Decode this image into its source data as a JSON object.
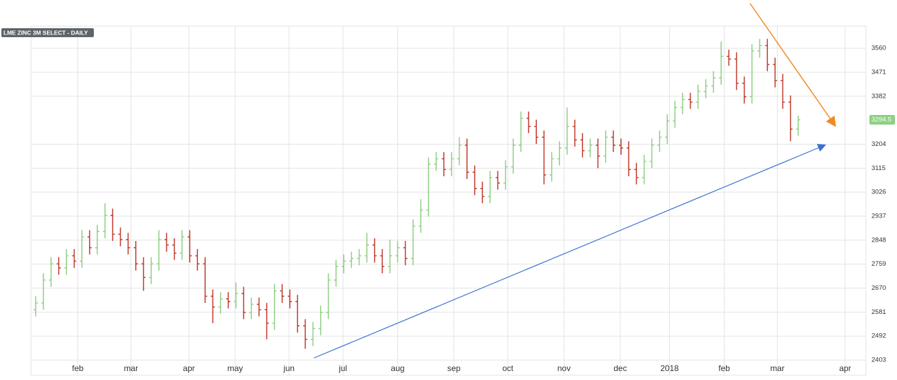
{
  "chart_data": {
    "type": "ohlc",
    "title": "LME ZINC 3M SELECT - DAILY",
    "up_color": "#8fcf84",
    "down_color": "#c0392b",
    "grid": true,
    "xlim": [
      -0.6,
      107.8
    ],
    "xticks": [
      {
        "value": 5.47,
        "label": "feb"
      },
      {
        "value": 12.37,
        "label": "mar"
      },
      {
        "value": 19.9,
        "label": "apr"
      },
      {
        "value": 25.9,
        "label": "may"
      },
      {
        "value": 32.9,
        "label": "jun"
      },
      {
        "value": 39.9,
        "label": "jul"
      },
      {
        "value": 47.0,
        "label": "aug"
      },
      {
        "value": 54.3,
        "label": "sep"
      },
      {
        "value": 61.3,
        "label": "oct"
      },
      {
        "value": 68.6,
        "label": "nov"
      },
      {
        "value": 75.9,
        "label": "dec"
      },
      {
        "value": 82.3,
        "label": "2018"
      },
      {
        "value": 89.4,
        "label": "feb"
      },
      {
        "value": 96.3,
        "label": "mar"
      },
      {
        "value": 105.1,
        "label": "apr"
      }
    ],
    "ylim": [
      2347,
      3642
    ],
    "yticks": [
      2403,
      2492,
      2581,
      2670,
      2759,
      2848,
      2937,
      3026,
      3115,
      3204,
      3382,
      3471,
      3560
    ],
    "open": [
      2590,
      2615,
      2700,
      2760,
      2745,
      2790,
      2770,
      2860,
      2820,
      2880,
      2940,
      2870,
      2850,
      2820,
      2760,
      2710,
      2760,
      2850,
      2830,
      2800,
      2860,
      2790,
      2760,
      2640,
      2600,
      2630,
      2620,
      2650,
      2580,
      2610,
      2590,
      2540,
      2660,
      2640,
      2620,
      2530,
      2480,
      2520,
      2580,
      2700,
      2750,
      2770,
      2780,
      2790,
      2830,
      2790,
      2750,
      2790,
      2820,
      2780,
      2900,
      2960,
      3130,
      3150,
      3110,
      3150,
      3200,
      3100,
      3040,
      3010,
      3080,
      3060,
      3120,
      3200,
      3300,
      3270,
      3230,
      3090,
      3150,
      3190,
      3270,
      3220,
      3180,
      3200,
      3160,
      3230,
      3200,
      3190,
      3110,
      3080,
      3140,
      3200,
      3230,
      3290,
      3340,
      3370,
      3360,
      3400,
      3420,
      3450,
      3530,
      3520,
      3430,
      3380,
      3550,
      3570,
      3500,
      3440,
      3360,
      3260
    ],
    "high": [
      2640,
      2725,
      2785,
      2785,
      2815,
      2815,
      2885,
      2885,
      2905,
      2985,
      2965,
      2895,
      2875,
      2845,
      2785,
      2785,
      2885,
      2875,
      2855,
      2885,
      2885,
      2815,
      2785,
      2665,
      2655,
      2655,
      2690,
      2675,
      2635,
      2635,
      2615,
      2685,
      2685,
      2665,
      2645,
      2555,
      2545,
      2605,
      2725,
      2775,
      2795,
      2805,
      2815,
      2875,
      2855,
      2815,
      2850,
      2845,
      2845,
      2925,
      3000,
      3155,
      3175,
      3175,
      3175,
      3230,
      3225,
      3125,
      3065,
      3105,
      3105,
      3145,
      3225,
      3325,
      3325,
      3295,
      3255,
      3175,
      3215,
      3340,
      3295,
      3245,
      3225,
      3225,
      3255,
      3255,
      3225,
      3215,
      3135,
      3165,
      3225,
      3255,
      3315,
      3365,
      3395,
      3395,
      3425,
      3445,
      3475,
      3585,
      3555,
      3545,
      3455,
      3575,
      3595,
      3595,
      3525,
      3465,
      3385,
      3310
    ],
    "low": [
      2565,
      2590,
      2675,
      2720,
      2720,
      2745,
      2745,
      2795,
      2795,
      2855,
      2845,
      2825,
      2795,
      2735,
      2660,
      2685,
      2735,
      2805,
      2775,
      2775,
      2765,
      2735,
      2615,
      2540,
      2575,
      2595,
      2595,
      2555,
      2555,
      2565,
      2480,
      2515,
      2615,
      2595,
      2505,
      2445,
      2455,
      2495,
      2555,
      2675,
      2725,
      2745,
      2755,
      2765,
      2765,
      2725,
      2725,
      2765,
      2755,
      2755,
      2875,
      2935,
      3105,
      3085,
      3085,
      3125,
      3075,
      3015,
      2985,
      2985,
      3035,
      3035,
      3095,
      3175,
      3245,
      3205,
      3055,
      3065,
      3125,
      3165,
      3195,
      3155,
      3155,
      3115,
      3135,
      3175,
      3165,
      3085,
      3055,
      3055,
      3115,
      3175,
      3205,
      3265,
      3315,
      3335,
      3335,
      3375,
      3395,
      3425,
      3495,
      3405,
      3355,
      3355,
      3525,
      3475,
      3415,
      3335,
      3215,
      3235
    ],
    "close": [
      2615,
      2700,
      2760,
      2745,
      2790,
      2770,
      2860,
      2820,
      2880,
      2940,
      2870,
      2850,
      2820,
      2760,
      2710,
      2760,
      2850,
      2830,
      2800,
      2860,
      2790,
      2760,
      2640,
      2600,
      2630,
      2620,
      2650,
      2580,
      2610,
      2590,
      2540,
      2660,
      2640,
      2620,
      2530,
      2480,
      2520,
      2580,
      2700,
      2750,
      2770,
      2780,
      2790,
      2830,
      2790,
      2750,
      2790,
      2820,
      2780,
      2900,
      2960,
      3130,
      3150,
      3110,
      3150,
      3200,
      3100,
      3040,
      3010,
      3080,
      3060,
      3120,
      3200,
      3300,
      3270,
      3230,
      3090,
      3150,
      3190,
      3270,
      3220,
      3180,
      3200,
      3160,
      3230,
      3200,
      3190,
      3110,
      3080,
      3140,
      3200,
      3230,
      3290,
      3340,
      3370,
      3360,
      3400,
      3420,
      3450,
      3530,
      3520,
      3430,
      3380,
      3550,
      3570,
      3500,
      3440,
      3360,
      3260,
      3294.5
    ]
  }
}
